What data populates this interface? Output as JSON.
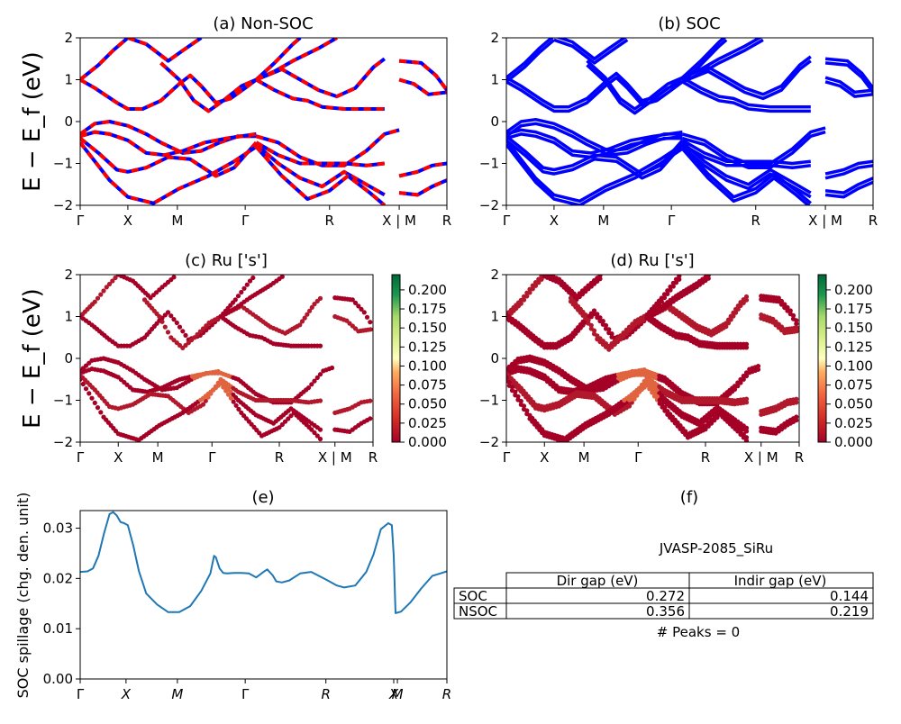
{
  "figure": {
    "ylabel_band": "E − E_f (eV)",
    "colorbar_ticks": [
      "0.000",
      "0.025",
      "0.050",
      "0.075",
      "0.100",
      "0.125",
      "0.150",
      "0.175",
      "0.200"
    ],
    "colors": {
      "nonsoc_red": "#ff0000",
      "nonsoc_blue": "#0000ff",
      "soc_blue": "#0000ff",
      "spillage_line": "#1f77b4"
    }
  },
  "chart_data": [
    {
      "type": "line",
      "title": "(a) Non-SOC",
      "ylim": [
        -2,
        2
      ],
      "yticks": [
        "2",
        "1",
        "0",
        "−1",
        "−2"
      ],
      "kpath_labels": [
        "Γ",
        "X",
        "M",
        "Γ",
        "R",
        "X | M",
        "R"
      ],
      "series": [
        {
          "values": [
            [
              0,
              1.0
            ],
            [
              0.05,
              1.35
            ],
            [
              0.09,
              1.7
            ],
            [
              0.13,
              2.0
            ]
          ]
        },
        {
          "values": [
            [
              0,
              1.0
            ],
            [
              0.04,
              0.8
            ],
            [
              0.1,
              0.45
            ],
            [
              0.13,
              0.3
            ],
            [
              0.17,
              0.3
            ],
            [
              0.22,
              0.5
            ],
            [
              0.27,
              0.9
            ],
            [
              0.3,
              1.1
            ],
            [
              0.33,
              0.85
            ],
            [
              0.37,
              0.45
            ],
            [
              0.41,
              0.55
            ],
            [
              0.45,
              0.8
            ],
            [
              0.48,
              1.0
            ]
          ]
        },
        {
          "values": [
            [
              0.13,
              2.0
            ],
            [
              0.18,
              1.85
            ],
            [
              0.24,
              1.45
            ],
            [
              0.28,
              1.7
            ],
            [
              0.33,
              2.0
            ]
          ]
        },
        {
          "values": [
            [
              0.22,
              1.4
            ],
            [
              0.27,
              1.0
            ],
            [
              0.31,
              0.5
            ],
            [
              0.35,
              0.25
            ],
            [
              0.39,
              0.5
            ],
            [
              0.44,
              0.85
            ],
            [
              0.48,
              1.0
            ]
          ]
        },
        {
          "values": [
            [
              0.48,
              1.0
            ],
            [
              0.53,
              1.4
            ],
            [
              0.58,
              1.85
            ],
            [
              0.6,
              2.0
            ]
          ]
        },
        {
          "values": [
            [
              0.48,
              1.0
            ],
            [
              0.53,
              0.75
            ],
            [
              0.58,
              0.55
            ],
            [
              0.62,
              0.5
            ],
            [
              0.66,
              0.35
            ],
            [
              0.72,
              0.3
            ],
            [
              0.78,
              0.3
            ],
            [
              0.83,
              0.3
            ]
          ]
        },
        {
          "values": [
            [
              0.48,
              1.0
            ],
            [
              0.55,
              1.25
            ],
            [
              0.6,
              1.0
            ],
            [
              0.65,
              0.75
            ],
            [
              0.7,
              0.6
            ],
            [
              0.75,
              0.8
            ],
            [
              0.8,
              1.3
            ],
            [
              0.83,
              1.5
            ]
          ]
        },
        {
          "values": [
            [
              0.48,
              1.0
            ],
            [
              0.53,
              1.2
            ],
            [
              0.58,
              1.45
            ],
            [
              0.65,
              1.75
            ],
            [
              0.7,
              2.0
            ]
          ]
        },
        {
          "values": [
            [
              0.87,
              1.45
            ],
            [
              0.93,
              1.4
            ],
            [
              0.97,
              1.1
            ],
            [
              1.0,
              0.75
            ]
          ]
        },
        {
          "values": [
            [
              0.87,
              1.0
            ],
            [
              0.91,
              0.9
            ],
            [
              0.95,
              0.65
            ],
            [
              1.0,
              0.7
            ]
          ]
        },
        {
          "values": [
            [
              0,
              -0.3
            ],
            [
              0.04,
              -0.05
            ],
            [
              0.08,
              0.0
            ],
            [
              0.13,
              -0.1
            ],
            [
              0.18,
              -0.3
            ],
            [
              0.22,
              -0.5
            ],
            [
              0.28,
              -0.75
            ],
            [
              0.33,
              -0.7
            ],
            [
              0.38,
              -0.5
            ],
            [
              0.43,
              -0.35
            ],
            [
              0.48,
              -0.35
            ]
          ]
        },
        {
          "values": [
            [
              0,
              -0.35
            ],
            [
              0.04,
              -0.25
            ],
            [
              0.08,
              -0.3
            ],
            [
              0.13,
              -0.45
            ],
            [
              0.18,
              -0.75
            ],
            [
              0.23,
              -0.8
            ],
            [
              0.28,
              -0.7
            ],
            [
              0.34,
              -0.5
            ],
            [
              0.4,
              -0.4
            ],
            [
              0.48,
              -0.3
            ]
          ]
        },
        {
          "values": [
            [
              0,
              -0.4
            ],
            [
              0.05,
              -0.75
            ],
            [
              0.1,
              -1.15
            ],
            [
              0.13,
              -1.2
            ],
            [
              0.18,
              -1.1
            ],
            [
              0.24,
              -0.85
            ],
            [
              0.3,
              -0.9
            ],
            [
              0.37,
              -1.3
            ],
            [
              0.42,
              -1.1
            ],
            [
              0.48,
              -0.5
            ]
          ]
        },
        {
          "values": [
            [
              0,
              -0.5
            ],
            [
              0.04,
              -0.95
            ],
            [
              0.08,
              -1.4
            ],
            [
              0.13,
              -1.8
            ],
            [
              0.2,
              -1.95
            ],
            [
              0.27,
              -1.6
            ],
            [
              0.35,
              -1.3
            ],
            [
              0.42,
              -0.95
            ],
            [
              0.48,
              -0.6
            ]
          ]
        },
        {
          "values": [
            [
              0.48,
              -0.35
            ],
            [
              0.54,
              -0.5
            ],
            [
              0.6,
              -0.85
            ],
            [
              0.66,
              -1.05
            ],
            [
              0.72,
              -1.05
            ],
            [
              0.78,
              -0.7
            ],
            [
              0.83,
              -0.3
            ],
            [
              0.87,
              -0.2
            ]
          ]
        },
        {
          "values": [
            [
              0.48,
              -0.5
            ],
            [
              0.54,
              -0.8
            ],
            [
              0.6,
              -1.0
            ],
            [
              0.66,
              -1.0
            ],
            [
              0.72,
              -1.0
            ],
            [
              0.78,
              -1.05
            ],
            [
              0.83,
              -1.0
            ]
          ]
        },
        {
          "values": [
            [
              0.48,
              -0.55
            ],
            [
              0.54,
              -1.0
            ],
            [
              0.6,
              -1.35
            ],
            [
              0.66,
              -1.55
            ],
            [
              0.72,
              -1.2
            ],
            [
              0.78,
              -1.5
            ],
            [
              0.83,
              -1.75
            ]
          ]
        },
        {
          "values": [
            [
              0.48,
              -0.6
            ],
            [
              0.55,
              -1.3
            ],
            [
              0.62,
              -1.85
            ],
            [
              0.68,
              -1.65
            ],
            [
              0.73,
              -1.3
            ],
            [
              0.79,
              -1.7
            ],
            [
              0.83,
              -2.0
            ]
          ]
        },
        {
          "values": [
            [
              0.87,
              -1.3
            ],
            [
              0.92,
              -1.2
            ],
            [
              0.96,
              -1.05
            ],
            [
              1.0,
              -1.0
            ]
          ]
        },
        {
          "values": [
            [
              0.87,
              -1.7
            ],
            [
              0.92,
              -1.75
            ],
            [
              0.96,
              -1.55
            ],
            [
              1.0,
              -1.4
            ]
          ]
        }
      ]
    },
    {
      "type": "line",
      "title": "(b) SOC",
      "ylim": [
        -2,
        2
      ],
      "yticks": [
        "2",
        "1",
        "0",
        "−1",
        "−2"
      ],
      "kpath_labels": [
        "Γ",
        "X",
        "M",
        "Γ",
        "R",
        "X | M",
        "R"
      ]
    },
    {
      "type": "scatter",
      "title": "(c)  Ru ['s']",
      "ylim": [
        -2,
        2
      ],
      "yticks": [
        "2",
        "1",
        "0",
        "−1",
        "−2"
      ],
      "kpath_labels": [
        "Γ",
        "X",
        "M",
        "Γ",
        "R",
        "X | M",
        "R"
      ],
      "colorbar_range": [
        0.0,
        0.22
      ]
    },
    {
      "type": "scatter",
      "title": "(d) Ru ['s']",
      "ylim": [
        -2,
        2
      ],
      "yticks": [
        "2",
        "1",
        "0",
        "−1",
        "−2"
      ],
      "kpath_labels": [
        "Γ",
        "X",
        "M",
        "Γ",
        "R",
        "X | M",
        "R"
      ],
      "colorbar_range": [
        0.0,
        0.22
      ]
    },
    {
      "type": "line",
      "title": "(e)",
      "ylabel": "SOC spillage (chg. den. unit)",
      "ylim": [
        0.0,
        0.0335
      ],
      "yticks": [
        "0.00",
        "0.01",
        "0.02",
        "0.03"
      ],
      "kpath_labels": [
        "Γ",
        "X",
        "M",
        "Γ",
        "R",
        "X",
        "M",
        "R"
      ],
      "x": [
        0,
        0.02,
        0.035,
        0.05,
        0.065,
        0.08,
        0.09,
        0.1,
        0.11,
        0.12,
        0.13,
        0.145,
        0.16,
        0.18,
        0.21,
        0.24,
        0.27,
        0.3,
        0.33,
        0.355,
        0.365,
        0.37,
        0.38,
        0.39,
        0.4,
        0.42,
        0.44,
        0.46,
        0.48,
        0.5,
        0.51,
        0.525,
        0.535,
        0.55,
        0.57,
        0.6,
        0.63,
        0.67,
        0.7,
        0.72,
        0.75,
        0.78,
        0.8,
        0.82,
        0.84,
        0.85,
        0.855,
        0.86,
        0.875,
        0.9,
        0.93,
        0.96,
        1.0
      ],
      "values": [
        0.0213,
        0.0214,
        0.022,
        0.0245,
        0.029,
        0.0328,
        0.0332,
        0.0325,
        0.0312,
        0.031,
        0.0306,
        0.0265,
        0.0215,
        0.017,
        0.0148,
        0.0133,
        0.0133,
        0.0145,
        0.0175,
        0.021,
        0.0245,
        0.0242,
        0.022,
        0.0211,
        0.021,
        0.0211,
        0.0211,
        0.021,
        0.0202,
        0.0213,
        0.0218,
        0.0206,
        0.0194,
        0.0192,
        0.0196,
        0.021,
        0.0213,
        0.0198,
        0.0186,
        0.0182,
        0.0186,
        0.0213,
        0.0248,
        0.0298,
        0.031,
        0.0306,
        0.0245,
        0.0131,
        0.0134,
        0.0152,
        0.018,
        0.0205,
        0.0214
      ],
      "grid": false
    }
  ],
  "info_panel": {
    "title": "(f)",
    "subtitle": "JVASP-2085_SiRu",
    "columns": [
      "",
      "Dir gap (eV)",
      "Indir gap (eV)"
    ],
    "rows": [
      {
        "label": "SOC",
        "dir": "0.272",
        "indir": "0.144"
      },
      {
        "label": "NSOC",
        "dir": "0.356",
        "indir": "0.219"
      }
    ],
    "peaks": "# Peaks = 0"
  }
}
